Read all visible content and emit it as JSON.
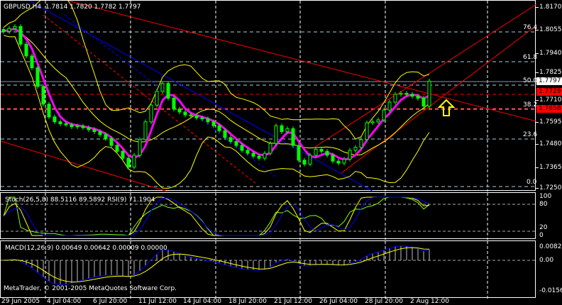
{
  "header": {
    "symbol": "GBPUSD,H4",
    "open": "1.7814",
    "high": "1.7820",
    "low": "1.7782",
    "close": "1.7797"
  },
  "price_axis": {
    "ticks": [
      "1.8170",
      "1.8055",
      "1.7940",
      "1.7825",
      "1.7710",
      "1.7595",
      "1.7480",
      "1.7365",
      "1.7250"
    ]
  },
  "price_tags": {
    "current": "1.7797",
    "level1": "1.7729",
    "level2": "1.7658"
  },
  "fibo_levels": [
    "76.4",
    "61.8",
    "50.0",
    "38.2",
    "23.6",
    "0.0"
  ],
  "stoch_panel": {
    "label": "Stoch(26,5,8) 88.5116 89.5892  RSI(9) 71.1904",
    "axis": [
      "100",
      "80",
      "20",
      "0"
    ]
  },
  "macd_panel": {
    "label": "MACD(12,26,9) 0.00649 0.00642 0.00009 0.00000",
    "axis": [
      "0.00821",
      "0.00",
      "-0.01561"
    ]
  },
  "copyright": "MetaTrader, © 2001-2005 MetaQuotes Software Corp.",
  "time_axis": [
    "29 Jun 2005",
    "4 Jul 04:00",
    "6 Jul 20:00",
    "11 Jul 12:00",
    "14 Jul 04:00",
    "18 Jul 20:00",
    "21 Jul 12:00",
    "26 Jul 04:00",
    "28 Jul 20:00",
    "2 Aug 12:00"
  ],
  "colors": {
    "background": "#000000",
    "candle": "#00ff00",
    "ma": "#ff00ff",
    "bands": "#ffff00",
    "trendline": "#ff0000",
    "channel_blue": "#0000ff",
    "fibo": "#a0d0e0",
    "arrow": "#ffff00"
  },
  "chart_data": {
    "type": "candlestick",
    "symbol": "GBPUSD",
    "timeframe": "H4",
    "ylim": [
      1.725,
      1.817
    ],
    "x_tick_labels": [
      "29 Jun 2005",
      "4 Jul 04:00",
      "6 Jul 20:00",
      "11 Jul 12:00",
      "14 Jul 04:00",
      "18 Jul 20:00",
      "21 Jul 12:00",
      "26 Jul 04:00",
      "28 Jul 20:00",
      "2 Aug 12:00"
    ],
    "close": [
      1.805,
      1.8065,
      1.8075,
      1.7985,
      1.7925,
      1.7865,
      1.777,
      1.768,
      1.7615,
      1.759,
      1.758,
      1.7575,
      1.7565,
      1.7568,
      1.756,
      1.755,
      1.754,
      1.7525,
      1.7505,
      1.747,
      1.744,
      1.7405,
      1.736,
      1.742,
      1.75,
      1.759,
      1.7675,
      1.7745,
      1.7785,
      1.771,
      1.7655,
      1.764,
      1.7625,
      1.762,
      1.761,
      1.7605,
      1.759,
      1.757,
      1.7545,
      1.751,
      1.749,
      1.747,
      1.7445,
      1.743,
      1.7415,
      1.7405,
      1.743,
      1.748,
      1.757,
      1.754,
      1.7555,
      1.747,
      1.7395,
      1.7375,
      1.742,
      1.745,
      1.744,
      1.742,
      1.739,
      1.738,
      1.74,
      1.7445,
      1.746,
      1.75,
      1.7585,
      1.759,
      1.76,
      1.765,
      1.769,
      1.773,
      1.7735,
      1.773,
      1.772,
      1.771,
      1.767,
      1.7797
    ],
    "indicators": {
      "stochastic": {
        "params": "26,5,8",
        "main": 88.5116,
        "signal": 89.5892,
        "levels": [
          20,
          80
        ],
        "ylim": [
          0,
          100
        ]
      },
      "rsi": {
        "period": 9,
        "value": 71.1904
      },
      "macd": {
        "params": "12,26,9",
        "values": [
          0.00649,
          0.00642,
          9e-05,
          0.0
        ],
        "ylim": [
          -0.01561,
          0.00821
        ]
      },
      "fibonacci_levels": [
        0.0,
        23.6,
        38.2,
        50.0,
        61.8,
        76.4
      ]
    }
  }
}
